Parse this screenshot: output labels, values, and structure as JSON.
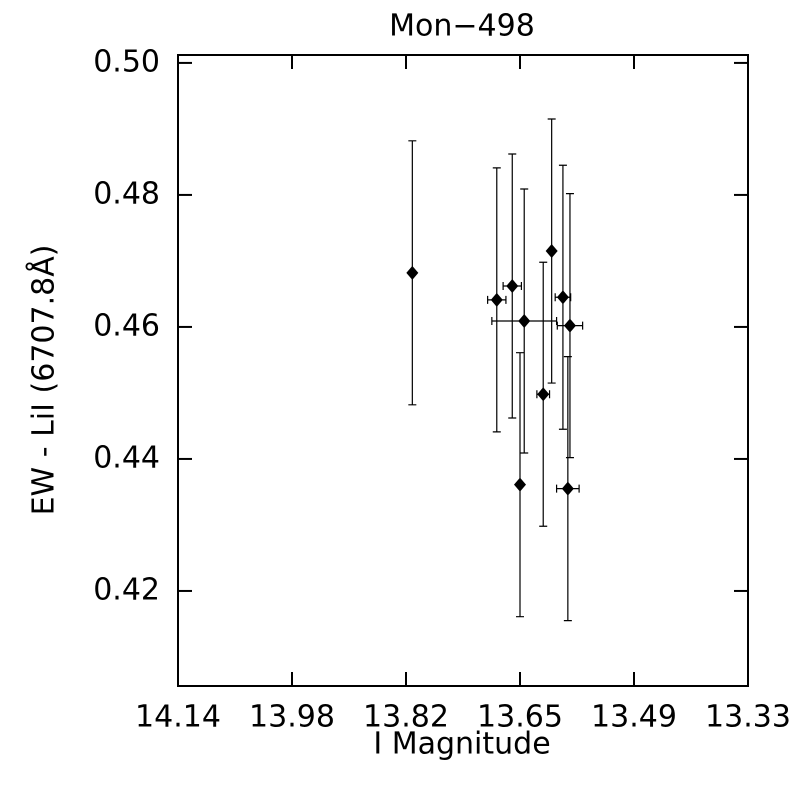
{
  "chart_data": {
    "type": "scatter",
    "title": "Mon−498",
    "x_label": "I Magnitude",
    "y_label": "EW - LiI (6707.8Å)",
    "xlim": [
      14.14,
      13.33
    ],
    "ylim": [
      0.4056,
      0.5012
    ],
    "xticks": [
      14.14,
      {
        "value": 13.978,
        "label": "13.98"
      },
      {
        "value": 13.816,
        "label": "13.82"
      },
      {
        "value": 13.654,
        "label": "13.65"
      },
      {
        "value": 13.492,
        "label": "13.49"
      },
      13.33
    ],
    "yticks": [
      {
        "value": 0.42,
        "label": "0.42"
      },
      {
        "value": 0.44,
        "label": "0.44"
      },
      {
        "value": 0.46,
        "label": "0.46"
      },
      {
        "value": 0.48,
        "label": "0.48"
      },
      {
        "value": 0.5,
        "label": "0.50"
      }
    ],
    "color": "#000000",
    "series": [
      {
        "x": [
          13.807,
          13.687,
          13.665,
          13.648,
          13.654,
          13.621,
          13.609,
          13.593,
          13.583,
          13.586
        ],
        "values": [
          0.4682,
          0.4641,
          0.4662,
          0.4609,
          0.4361,
          0.4498,
          0.4715,
          0.4645,
          0.4602,
          0.4355
        ],
        "yerr": [
          0.02,
          0.02,
          0.02,
          0.02,
          0.02,
          0.02,
          0.02,
          0.02,
          0.02,
          0.02
        ],
        "xerr": [
          null,
          0.013,
          0.013,
          0.046,
          null,
          0.009,
          null,
          0.011,
          0.018,
          0.016
        ]
      }
    ]
  }
}
